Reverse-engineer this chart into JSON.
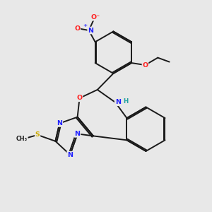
{
  "bg": "#e8e8e8",
  "bond_color": "#1a1a1a",
  "atom_colors": {
    "N": "#2020ff",
    "O": "#ff2020",
    "S": "#ccaa00",
    "C": "#1a1a1a",
    "H": "#20a0a0"
  },
  "figsize": [
    3.0,
    3.0
  ],
  "dpi": 100,
  "lw": 1.4,
  "off": 0.06
}
